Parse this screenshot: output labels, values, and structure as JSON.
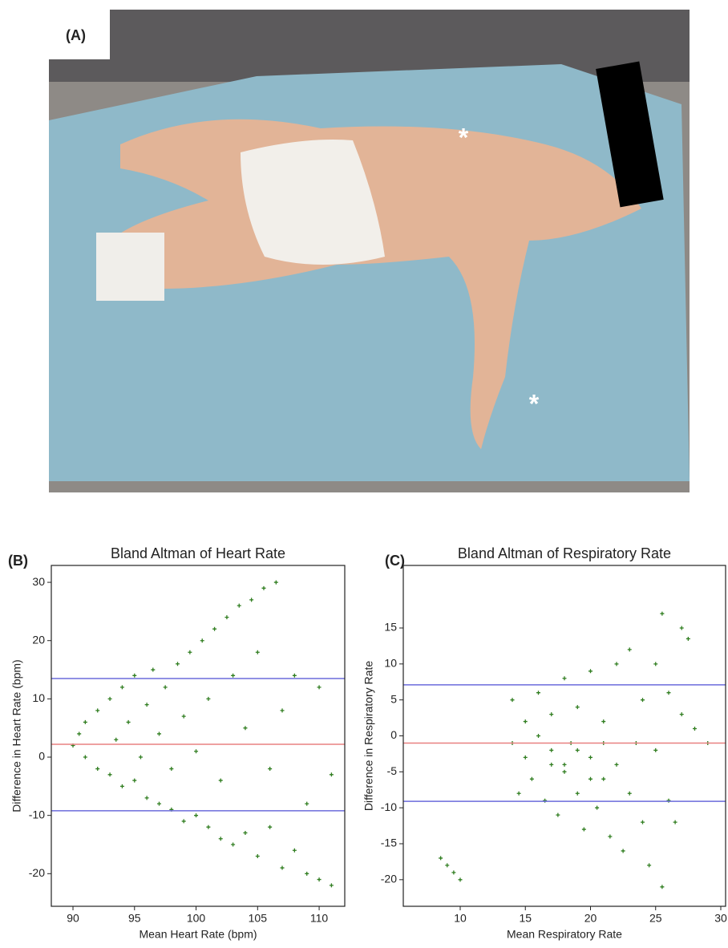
{
  "photo": {
    "label": "(A)",
    "markers": [
      "*",
      "*"
    ]
  },
  "chart_data": [
    {
      "type": "scatter",
      "panel_label": "(B)",
      "title": "Bland Altman of Heart Rate",
      "x_label": "Mean Heart Rate (bpm)",
      "y_label": "Difference in Heart Rate (bpm)",
      "xlim": [
        88.24,
        112.08
      ],
      "ylim": [
        -25.6,
        32.9
      ],
      "xticks": [
        90,
        95,
        100,
        105,
        110
      ],
      "yticks": [
        -20,
        -10,
        0,
        10,
        20,
        30
      ],
      "color": "#2f7d1f",
      "x": [
        90,
        90.5,
        91,
        91,
        92,
        92,
        93,
        93,
        93.5,
        94,
        94,
        94.5,
        95,
        95,
        95.5,
        96,
        96,
        96.5,
        97,
        97,
        97.5,
        98,
        98,
        98.5,
        99,
        99,
        99.5,
        100,
        100,
        100.5,
        101,
        101,
        101.5,
        102,
        102,
        102.5,
        103,
        103,
        103.5,
        104,
        104,
        104.5,
        105,
        105,
        105.5,
        106,
        106,
        106.5,
        107,
        107,
        108,
        108,
        109,
        109,
        110,
        110,
        111,
        111
      ],
      "values": [
        2,
        4,
        0,
        6,
        -2,
        8,
        -3,
        10,
        3,
        -5,
        12,
        6,
        -4,
        14,
        0,
        -7,
        9,
        15,
        -8,
        4,
        12,
        -9,
        -2,
        16,
        -11,
        7,
        18,
        -10,
        1,
        20,
        -12,
        10,
        22,
        -14,
        -4,
        24,
        -15,
        14,
        26,
        -13,
        5,
        27,
        -17,
        18,
        29,
        -12,
        -2,
        30,
        -19,
        8,
        -16,
        14,
        -20,
        -8,
        -21,
        12,
        -22,
        -3
      ],
      "reference_lines": [
        {
          "value": 13.5,
          "color": "#6b6bdc"
        },
        {
          "value": 2.2,
          "color": "#e88080"
        },
        {
          "value": -9.2,
          "color": "#6b6bdc"
        }
      ]
    },
    {
      "type": "scatter",
      "panel_label": "(C)",
      "title": "Bland Altman of Respiratory Rate",
      "x_label": "Mean Respiratory Rate",
      "y_label": "Difference in Respiratory Rate",
      "xlim": [
        5.63,
        30.37
      ],
      "ylim": [
        -23.7,
        23.7
      ],
      "xticks": [
        10,
        15,
        20,
        25,
        30
      ],
      "yticks": [
        -20,
        -15,
        -10,
        -5,
        0,
        5,
        10,
        15
      ],
      "color": "#2f7d1f",
      "x": [
        8.5,
        9,
        9.5,
        10,
        14,
        14,
        14.5,
        15,
        15,
        15.5,
        16,
        16,
        16.5,
        17,
        17,
        17.5,
        18,
        18,
        18.5,
        19,
        19,
        19.5,
        20,
        20,
        20.5,
        21,
        21,
        21.5,
        22,
        22,
        22.5,
        23,
        23,
        23.5,
        24,
        24,
        24.5,
        25,
        25,
        25.5,
        25.5,
        26,
        26,
        26.5,
        27,
        27,
        27.5,
        28,
        29,
        21,
        19,
        18,
        20,
        17
      ],
      "values": [
        -17,
        -18,
        -19,
        -20,
        -1,
        5,
        -8,
        -3,
        2,
        -6,
        0,
        6,
        -9,
        -2,
        3,
        -11,
        -5,
        8,
        -1,
        -8,
        4,
        -13,
        -3,
        9,
        -10,
        -6,
        2,
        -14,
        -4,
        10,
        -16,
        -8,
        12,
        -1,
        -12,
        5,
        -18,
        -2,
        10,
        -21,
        17,
        -9,
        6,
        -12,
        15,
        3,
        13.5,
        1,
        -1,
        -1,
        -2,
        -4,
        -6,
        -4
      ],
      "reference_lines": [
        {
          "value": 7.1,
          "color": "#6b6bdc"
        },
        {
          "value": -1.0,
          "color": "#e88080"
        },
        {
          "value": -9.1,
          "color": "#6b6bdc"
        }
      ]
    }
  ]
}
